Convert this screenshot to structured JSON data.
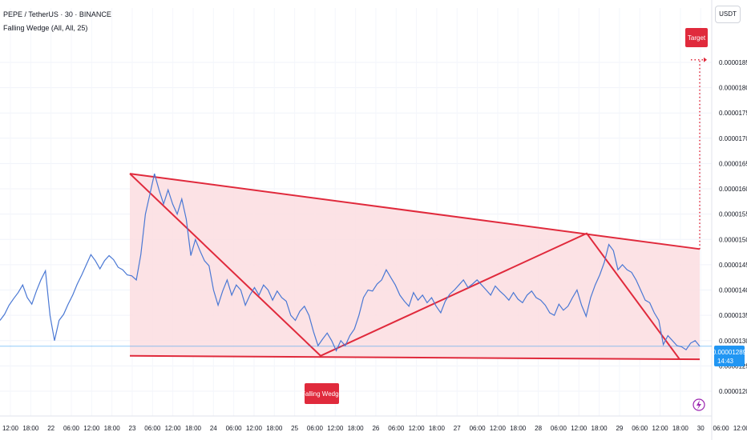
{
  "header": {
    "symbol_line": "PEPE / TetherUS · 30 · BINANCE",
    "indicator_line": "Falling Wedge (All, All, 25)"
  },
  "axis": {
    "currency": "USDT",
    "y_ticks": [
      "0.00001850",
      "0.00001800",
      "0.00001750",
      "0.00001700",
      "0.00001650",
      "0.00001600",
      "0.00001550",
      "0.00001500",
      "0.00001450",
      "0.00001400",
      "0.00001350",
      "0.00001300",
      "0.00001250",
      "0.00001200"
    ],
    "x_ticks": [
      "12:00",
      "18:00",
      "22",
      "06:00",
      "12:00",
      "18:00",
      "23",
      "06:00",
      "12:00",
      "18:00",
      "24",
      "06:00",
      "12:00",
      "18:00",
      "25",
      "06:00",
      "12:00",
      "18:00",
      "26",
      "06:00",
      "12:00",
      "18:00",
      "27",
      "06:00",
      "12:00",
      "18:00",
      "28",
      "06:00",
      "12:00",
      "18:00",
      "29",
      "06:00",
      "12:00",
      "18:00",
      "30",
      "06:00",
      "12:00",
      "18:00"
    ]
  },
  "last_price": {
    "value": "0.00001289",
    "countdown": "14:43"
  },
  "labels": {
    "pattern": "Falling Wedge",
    "target": "Target"
  },
  "colors": {
    "price_line": "#4a78d4",
    "wedge_line": "#e02a3c",
    "wedge_fill": "#fcdde1",
    "last_price_badge": "#2196f3",
    "target_badge": "#e02a3c"
  },
  "chart_data": {
    "type": "line",
    "title": "PEPE / TetherUS · 30 · BINANCE",
    "ylim": [
      1.17e-05,
      1.91e-05
    ],
    "y_ticks": [
      1.85e-05,
      1.8e-05,
      1.75e-05,
      1.7e-05,
      1.65e-05,
      1.6e-05,
      1.55e-05,
      1.5e-05,
      1.45e-05,
      1.4e-05,
      1.35e-05,
      1.3e-05,
      1.25e-05,
      1.2e-05
    ],
    "last": 1.289e-05,
    "series": [
      {
        "values": [
          1.34e-05,
          1.352e-05,
          1.37e-05,
          1.383e-05,
          1.395e-05,
          1.41e-05,
          1.385e-05,
          1.372e-05,
          1.398e-05,
          1.42e-05,
          1.438e-05,
          1.35e-05,
          1.3e-05,
          1.34e-05,
          1.352e-05,
          1.372e-05,
          1.39e-05,
          1.412e-05,
          1.43e-05,
          1.45e-05,
          1.47e-05,
          1.458e-05,
          1.442e-05,
          1.458e-05,
          1.468e-05,
          1.46e-05,
          1.445e-05,
          1.44e-05,
          1.43e-05,
          1.428e-05,
          1.42e-05,
          1.47e-05,
          1.55e-05,
          1.59e-05,
          1.63e-05,
          1.598e-05,
          1.57e-05,
          1.598e-05,
          1.57e-05,
          1.55e-05,
          1.58e-05,
          1.54e-05,
          1.468e-05,
          1.5e-05,
          1.478e-05,
          1.458e-05,
          1.448e-05,
          1.4e-05,
          1.37e-05,
          1.398e-05,
          1.42e-05,
          1.39e-05,
          1.41e-05,
          1.4e-05,
          1.37e-05,
          1.39e-05,
          1.405e-05,
          1.39e-05,
          1.41e-05,
          1.4e-05,
          1.38e-05,
          1.398e-05,
          1.385e-05,
          1.378e-05,
          1.35e-05,
          1.34e-05,
          1.358e-05,
          1.368e-05,
          1.35e-05,
          1.318e-05,
          1.29e-05,
          1.303e-05,
          1.315e-05,
          1.3e-05,
          1.28e-05,
          1.3e-05,
          1.29e-05,
          1.31e-05,
          1.323e-05,
          1.35e-05,
          1.385e-05,
          1.4e-05,
          1.398e-05,
          1.412e-05,
          1.42e-05,
          1.44e-05,
          1.425e-05,
          1.41e-05,
          1.39e-05,
          1.378e-05,
          1.368e-05,
          1.395e-05,
          1.38e-05,
          1.39e-05,
          1.375e-05,
          1.385e-05,
          1.368e-05,
          1.355e-05,
          1.378e-05,
          1.392e-05,
          1.4e-05,
          1.41e-05,
          1.42e-05,
          1.405e-05,
          1.412e-05,
          1.42e-05,
          1.41e-05,
          1.4e-05,
          1.39e-05,
          1.408e-05,
          1.398e-05,
          1.39e-05,
          1.38e-05,
          1.395e-05,
          1.382e-05,
          1.375e-05,
          1.39e-05,
          1.398e-05,
          1.385e-05,
          1.38e-05,
          1.37e-05,
          1.355e-05,
          1.35e-05,
          1.372e-05,
          1.36e-05,
          1.368e-05,
          1.385e-05,
          1.4e-05,
          1.37e-05,
          1.348e-05,
          1.385e-05,
          1.41e-05,
          1.43e-05,
          1.455e-05,
          1.49e-05,
          1.478e-05,
          1.44e-05,
          1.45e-05,
          1.44e-05,
          1.435e-05,
          1.42e-05,
          1.4e-05,
          1.38e-05,
          1.375e-05,
          1.355e-05,
          1.34e-05,
          1.292e-05,
          1.31e-05,
          1.3e-05,
          1.29e-05,
          1.288e-05,
          1.282e-05,
          1.295e-05,
          1.3e-05,
          1.289e-05
        ]
      }
    ],
    "pattern": {
      "name": "Falling Wedge",
      "upper_line": [
        [
          0.03,
          1.63e-05
        ],
        [
          0.7,
          1.512e-05
        ],
        [
          1.0,
          1.481e-05
        ]
      ],
      "lower_line": [
        [
          0.03,
          1.27e-05
        ],
        [
          1.0,
          1.263e-05
        ]
      ],
      "zigzag": [
        1.63e-05,
        1.27e-05,
        1.512e-05,
        1.263e-05
      ],
      "target": 1.855e-05
    }
  }
}
